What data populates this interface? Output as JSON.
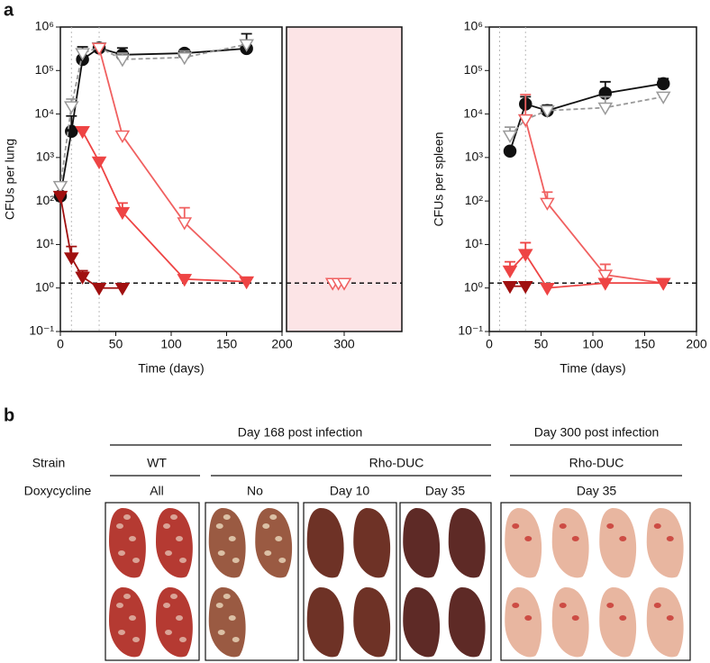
{
  "panel_a": {
    "label": "a"
  },
  "chart_data": [
    {
      "type": "line",
      "log_y": true,
      "xlabel": "Time (days)",
      "ylabel": "CFUs per lung",
      "xlim": [
        0,
        200
      ],
      "xticks": [
        0,
        50,
        100,
        150,
        200
      ],
      "ylim": [
        0.1,
        1000000
      ],
      "yticks": [
        {
          "value": 0.1,
          "label": "10⁻¹"
        },
        {
          "value": 1,
          "label": "10⁰"
        },
        {
          "value": 10,
          "label": "10¹"
        },
        {
          "value": 100,
          "label": "10²"
        },
        {
          "value": 1000,
          "label": "10³"
        },
        {
          "value": 10000,
          "label": "10⁴"
        },
        {
          "value": 100000,
          "label": "10⁵"
        },
        {
          "value": 1000000,
          "label": "10⁶"
        }
      ],
      "reference_line": 1.3,
      "vlines": [
        10,
        35
      ],
      "series": [
        {
          "color": "#111111",
          "marker": "circle",
          "filled": true,
          "dash": false,
          "x": [
            0,
            10,
            20,
            35,
            56,
            112,
            168
          ],
          "values": [
            130,
            4000,
            180000,
            330000,
            230000,
            250000,
            320000
          ],
          "error_high": [
            null,
            9000,
            350000,
            420000,
            330000,
            300000,
            700000
          ]
        },
        {
          "color": "#999999",
          "marker": "triangle-down",
          "filled": false,
          "dash": true,
          "x": [
            0,
            10,
            20,
            35,
            56,
            112,
            168
          ],
          "values": [
            220,
            15000,
            250000,
            340000,
            180000,
            200000,
            400000
          ],
          "error_high": [
            null,
            22000,
            300000,
            null,
            250000,
            280000,
            500000
          ]
        },
        {
          "color": "#f06060",
          "marker": "triangle-down",
          "filled": false,
          "dash": false,
          "x": [
            35,
            56,
            112,
            168
          ],
          "values": [
            330000,
            3200,
            32,
            1.4
          ],
          "error_high": [
            null,
            null,
            70,
            null
          ]
        },
        {
          "color": "#ee4444",
          "marker": "triangle-down",
          "filled": true,
          "dash": false,
          "x": [
            20,
            35,
            56,
            112,
            168
          ],
          "values": [
            4000,
            800,
            55,
            1.6,
            1.4
          ],
          "error_high": [
            5000,
            null,
            90,
            2,
            null
          ]
        },
        {
          "color": "#a01010",
          "marker": "triangle-down",
          "filled": true,
          "dash": false,
          "x": [
            0,
            10,
            20,
            35,
            56
          ],
          "values": [
            130,
            5,
            1.8,
            1,
            1
          ],
          "error_high": [
            null,
            9,
            2.5,
            null,
            null
          ]
        }
      ]
    },
    {
      "type": "line",
      "log_y": true,
      "xlim": [
        200,
        400
      ],
      "xticks": [
        300
      ],
      "ylim": [
        0.1,
        1000000
      ],
      "reference_line": 1.3,
      "background": "#fce4e6",
      "series": [
        {
          "color": "#f06060",
          "marker": "triangle-down",
          "filled": false,
          "dash": false,
          "x": [
            280,
            290,
            300
          ],
          "values": [
            1.3,
            1.3,
            1.3
          ]
        }
      ]
    },
    {
      "type": "line",
      "log_y": true,
      "xlabel": "Time (days)",
      "ylabel": "CFUs per spleen",
      "xlim": [
        0,
        200
      ],
      "xticks": [
        0,
        50,
        100,
        150,
        200
      ],
      "ylim": [
        0.1,
        1000000
      ],
      "yticks": [
        {
          "value": 0.1,
          "label": "10⁻¹"
        },
        {
          "value": 1,
          "label": "10⁰"
        },
        {
          "value": 10,
          "label": "10¹"
        },
        {
          "value": 100,
          "label": "10²"
        },
        {
          "value": 1000,
          "label": "10³"
        },
        {
          "value": 10000,
          "label": "10⁴"
        },
        {
          "value": 100000,
          "label": "10⁵"
        },
        {
          "value": 1000000,
          "label": "10⁶"
        }
      ],
      "reference_line": 1.3,
      "vlines": [
        10,
        35
      ],
      "series": [
        {
          "color": "#111111",
          "marker": "circle",
          "filled": true,
          "dash": false,
          "x": [
            20,
            35,
            56,
            112,
            168
          ],
          "values": [
            1400,
            17000,
            12000,
            30000,
            50000
          ],
          "error_high": [
            null,
            25000,
            16000,
            55000,
            65000
          ]
        },
        {
          "color": "#999999",
          "marker": "triangle-down",
          "filled": false,
          "dash": true,
          "x": [
            20,
            35,
            56,
            112,
            168
          ],
          "values": [
            3200,
            7500,
            12000,
            14000,
            25000
          ],
          "error_high": [
            5000,
            null,
            null,
            25000,
            30000
          ]
        },
        {
          "color": "#f06060",
          "marker": "triangle-down",
          "filled": false,
          "dash": false,
          "x": [
            35,
            56,
            112,
            168
          ],
          "values": [
            7500,
            90,
            2,
            1.3
          ],
          "error_high": [
            28000,
            160,
            3.5,
            null
          ]
        },
        {
          "color": "#ee4444",
          "marker": "triangle-down",
          "filled": true,
          "dash": false,
          "x": [
            20,
            35,
            56,
            112,
            168
          ],
          "values": [
            2.5,
            6,
            1,
            1.3,
            1.3
          ],
          "error_high": [
            4,
            11,
            null,
            null,
            null
          ]
        },
        {
          "color": "#a01010",
          "marker": "triangle-down",
          "filled": true,
          "dash": false,
          "x": [
            20,
            35
          ],
          "values": [
            1.1,
            1.1
          ]
        }
      ]
    }
  ],
  "panel_b": {
    "label": "b",
    "timepoints": [
      "Day 168 post infection",
      "Day 300 post infection"
    ],
    "row_labels": [
      "Strain",
      "Doxycycline"
    ],
    "strains": [
      "WT",
      "Rho-DUC",
      "Rho-DUC"
    ],
    "doxycycline": [
      "All",
      "No",
      "Day 10",
      "Day 35",
      "Day 35"
    ]
  }
}
